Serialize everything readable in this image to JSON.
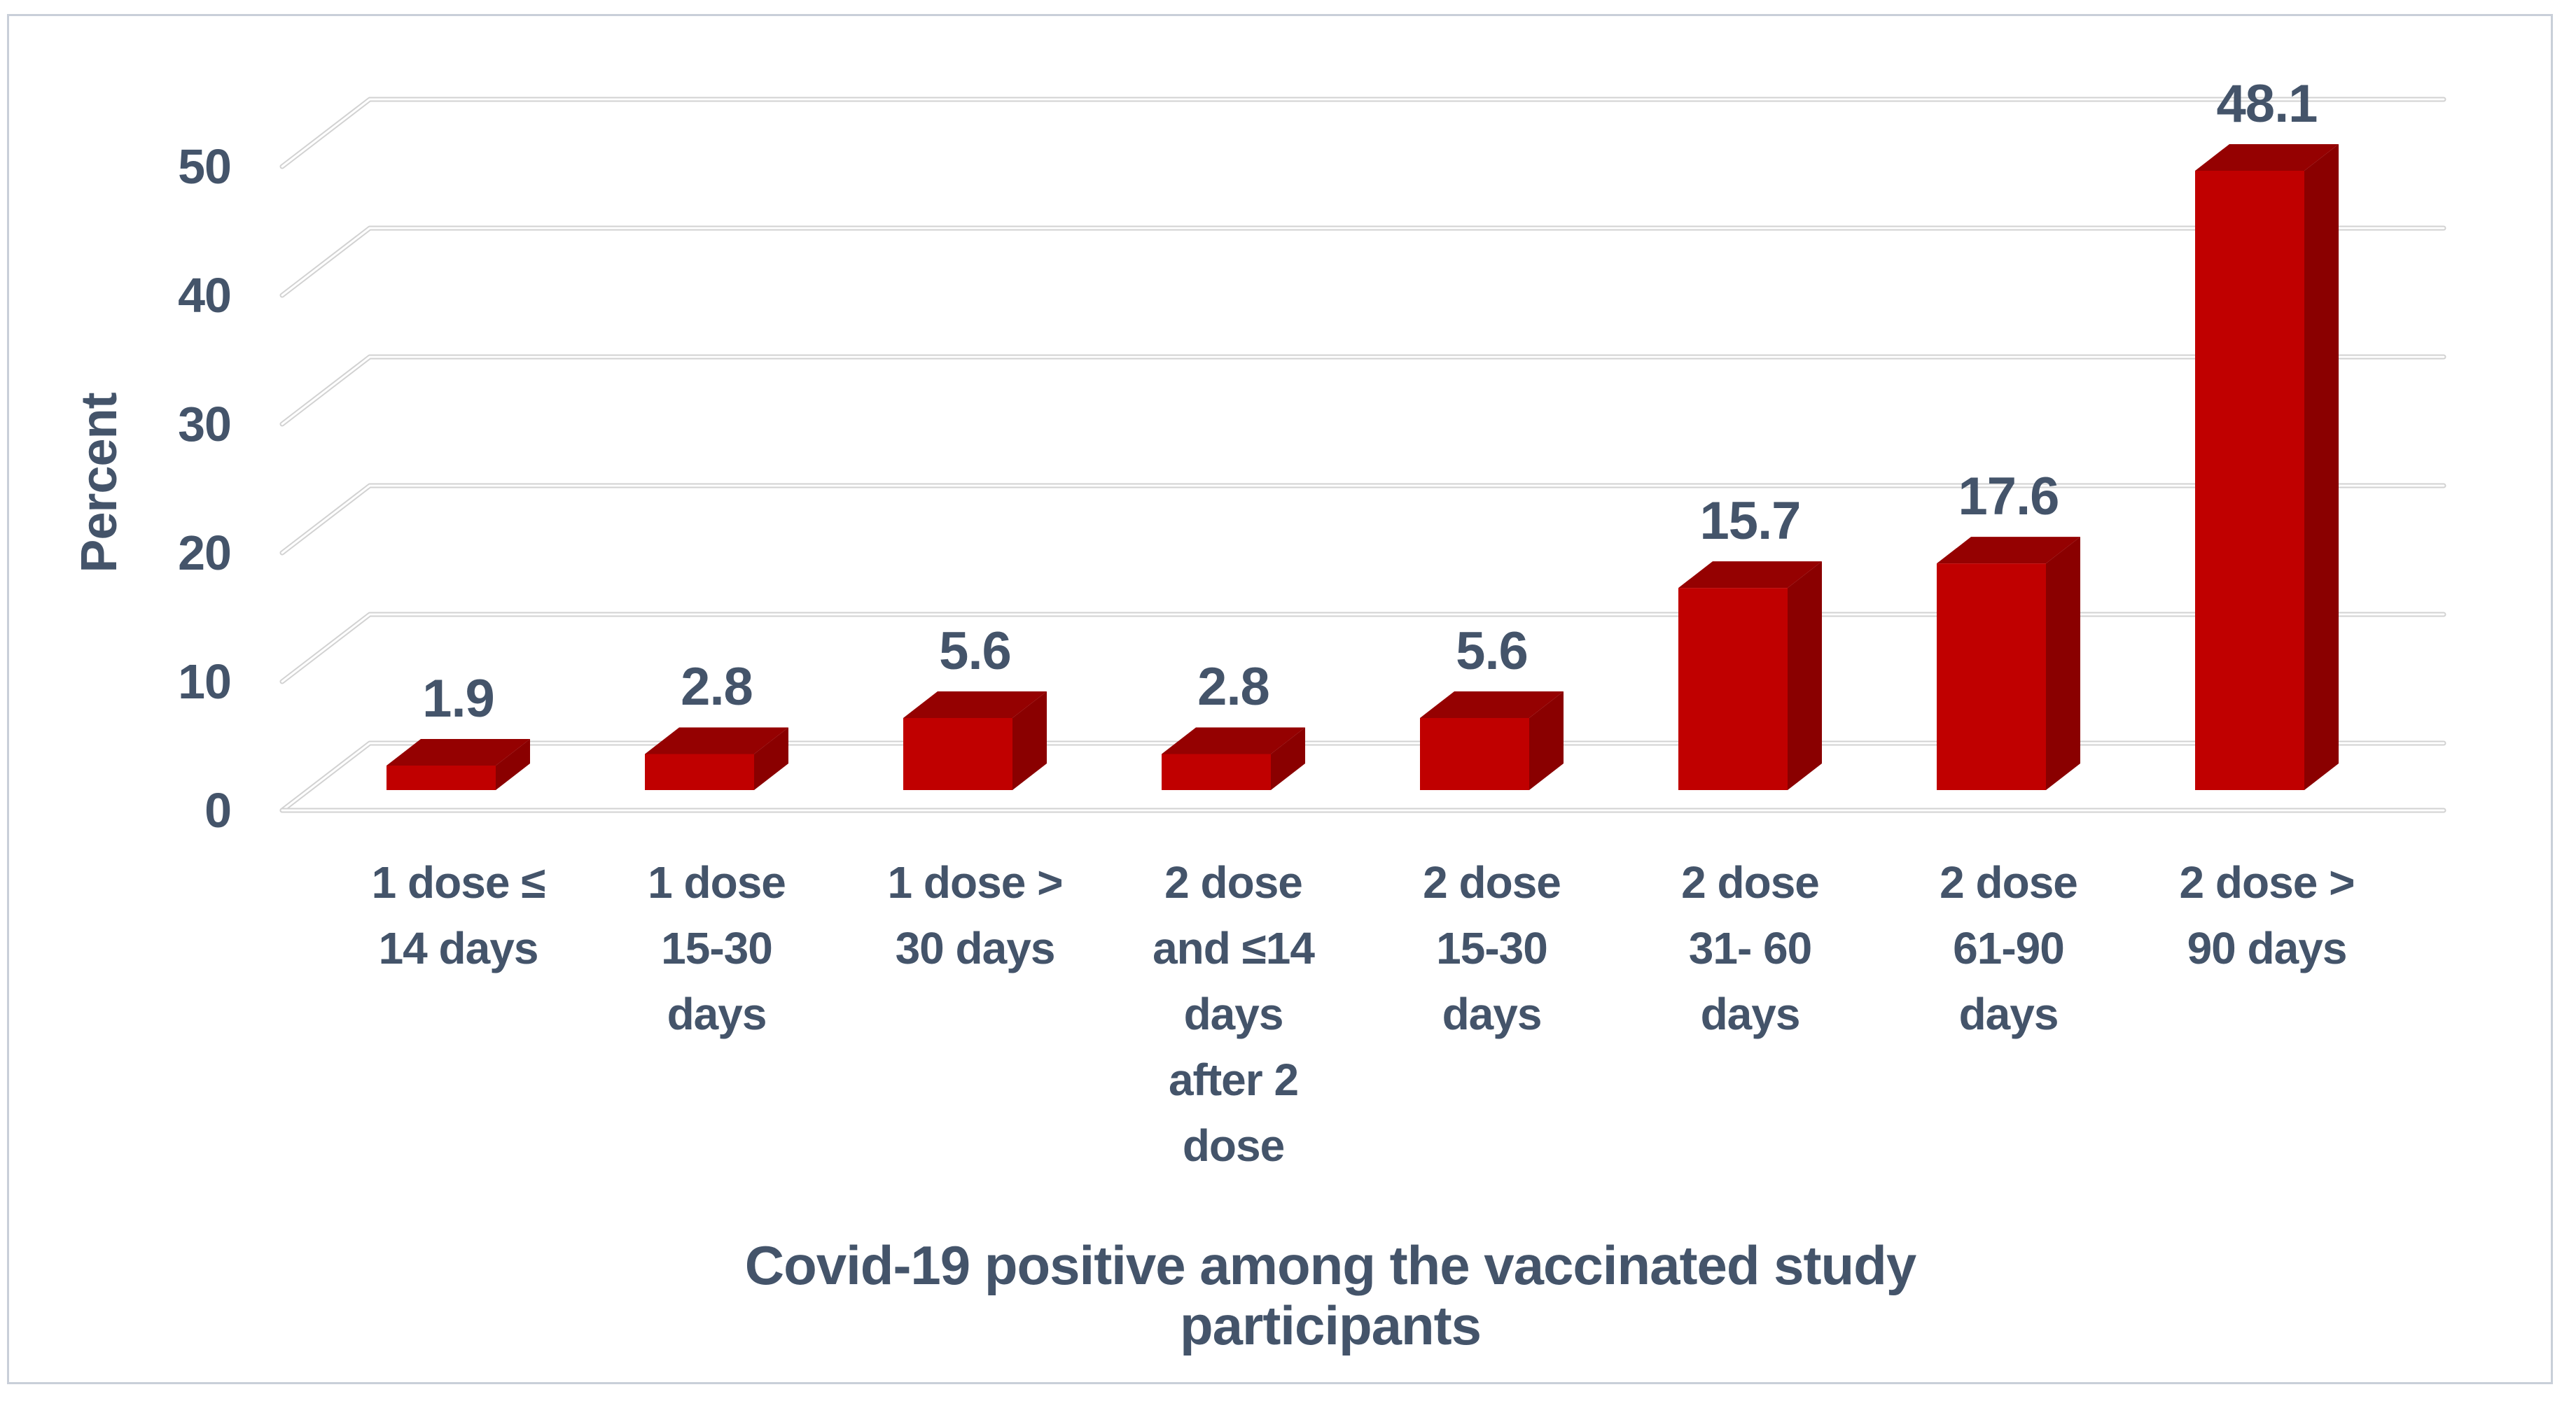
{
  "figure": {
    "background": "#FFFFFF",
    "border_color": "#C9CFD9"
  },
  "chart_data": {
    "type": "bar",
    "style": "3d-column",
    "title": "",
    "xlabel": "Covid-19 positive among the vaccinated study participants",
    "ylabel": "Percent",
    "categories": [
      "1 dose ≤\n14 days",
      "1 dose\n15-30\ndays",
      "1 dose >\n30 days",
      "2 dose\nand ≤14\ndays\nafter 2\ndose",
      "2 dose\n15-30\ndays",
      "2 dose\n31- 60\ndays",
      "2 dose\n61-90\ndays",
      "2 dose >\n90 days"
    ],
    "values": [
      1.9,
      2.8,
      5.6,
      2.8,
      5.6,
      15.7,
      17.6,
      48.1
    ],
    "data_labels": [
      "1.9",
      "2.8",
      "5.6",
      "2.8",
      "5.6",
      "15.7",
      "17.6",
      "48.1"
    ],
    "yticks": [
      0,
      10,
      20,
      30,
      40,
      50
    ],
    "ylim": [
      0,
      50
    ],
    "grid": true,
    "legend": "none",
    "colors": {
      "bar_front": "#C00000",
      "bar_top": "#950101",
      "bar_side": "#8A0000",
      "text": "#44546A",
      "gridline": "#D2D2D2",
      "gridline_highlight": "#FFFFFF"
    }
  }
}
